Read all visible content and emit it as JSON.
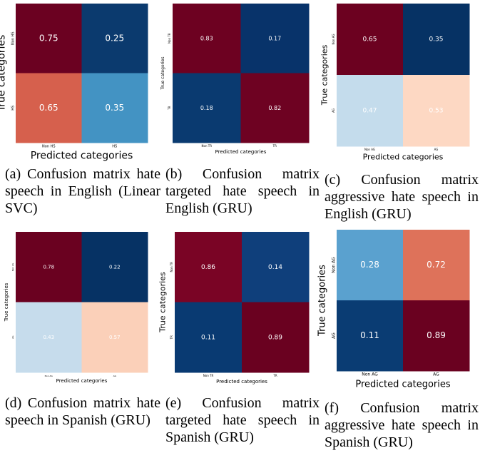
{
  "chart_data": [
    {
      "type": "heatmap",
      "caption": "(a) Confusion matrix hate speech in English (Linear SVC)",
      "xlabel": "Predicted categories",
      "ylabel": "True categories",
      "categories": [
        "Non HS",
        "HS"
      ],
      "values": [
        [
          0.75,
          0.25
        ],
        [
          0.65,
          0.35
        ]
      ],
      "colors": [
        [
          "#6b0121",
          "#0b3a6e"
        ],
        [
          "#d6604d",
          "#4393c3"
        ]
      ]
    },
    {
      "type": "heatmap",
      "caption": "(b) Confusion matrix targeted hate speech in English (GRU)",
      "xlabel": "Predicted categories",
      "ylabel": "True categories",
      "categories": [
        "Non TR",
        "TR"
      ],
      "values": [
        [
          0.83,
          0.17
        ],
        [
          0.18,
          0.82
        ]
      ],
      "colors": [
        [
          "#6d0121",
          "#08336a"
        ],
        [
          "#0a3a70",
          "#6e0222"
        ]
      ]
    },
    {
      "type": "heatmap",
      "caption": "(c) Confusion matrix aggressive hate speech in English (GRU)",
      "xlabel": "Predicted categories",
      "ylabel": "True categories",
      "categories": [
        "Non AG",
        "AG"
      ],
      "values": [
        [
          0.65,
          0.35
        ],
        [
          0.47,
          0.53
        ]
      ],
      "colors": [
        [
          "#6c0120",
          "#063264"
        ],
        [
          "#c4dcec",
          "#fdd8c3"
        ]
      ]
    },
    {
      "type": "heatmap",
      "caption": "(d) Confusion matrix hate speech in Spanish (GRU)",
      "xlabel": "Predicted categories",
      "ylabel": "True categories",
      "categories": [
        "Non AG",
        "AG"
      ],
      "values": [
        [
          0.78,
          0.22
        ],
        [
          0.43,
          0.57
        ]
      ],
      "colors": [
        [
          "#6a0120",
          "#063264"
        ],
        [
          "#c6dcec",
          "#fbd0b9"
        ]
      ]
    },
    {
      "type": "heatmap",
      "caption": "(e) Confusion matrix targeted hate speech in Spanish (GRU)",
      "xlabel": "Predicted categories",
      "ylabel": "True categories",
      "categories": [
        "Non TR",
        "TR"
      ],
      "values": [
        [
          0.86,
          0.14
        ],
        [
          0.11,
          0.89
        ]
      ],
      "colors": [
        [
          "#7a0425",
          "#0f3f7b"
        ],
        [
          "#093a72",
          "#6a0120"
        ]
      ]
    },
    {
      "type": "heatmap",
      "caption": "(f) Confusion matrix aggressive hate speech in Spanish (GRU)",
      "xlabel": "Predicted categories",
      "ylabel": "True categories",
      "categories": [
        "Non AG",
        "AG"
      ],
      "values": [
        [
          0.28,
          0.72
        ],
        [
          0.11,
          0.89
        ]
      ],
      "colors": [
        [
          "#5aa1cf",
          "#de725a"
        ],
        [
          "#0a3c73",
          "#6a0120"
        ]
      ]
    }
  ]
}
